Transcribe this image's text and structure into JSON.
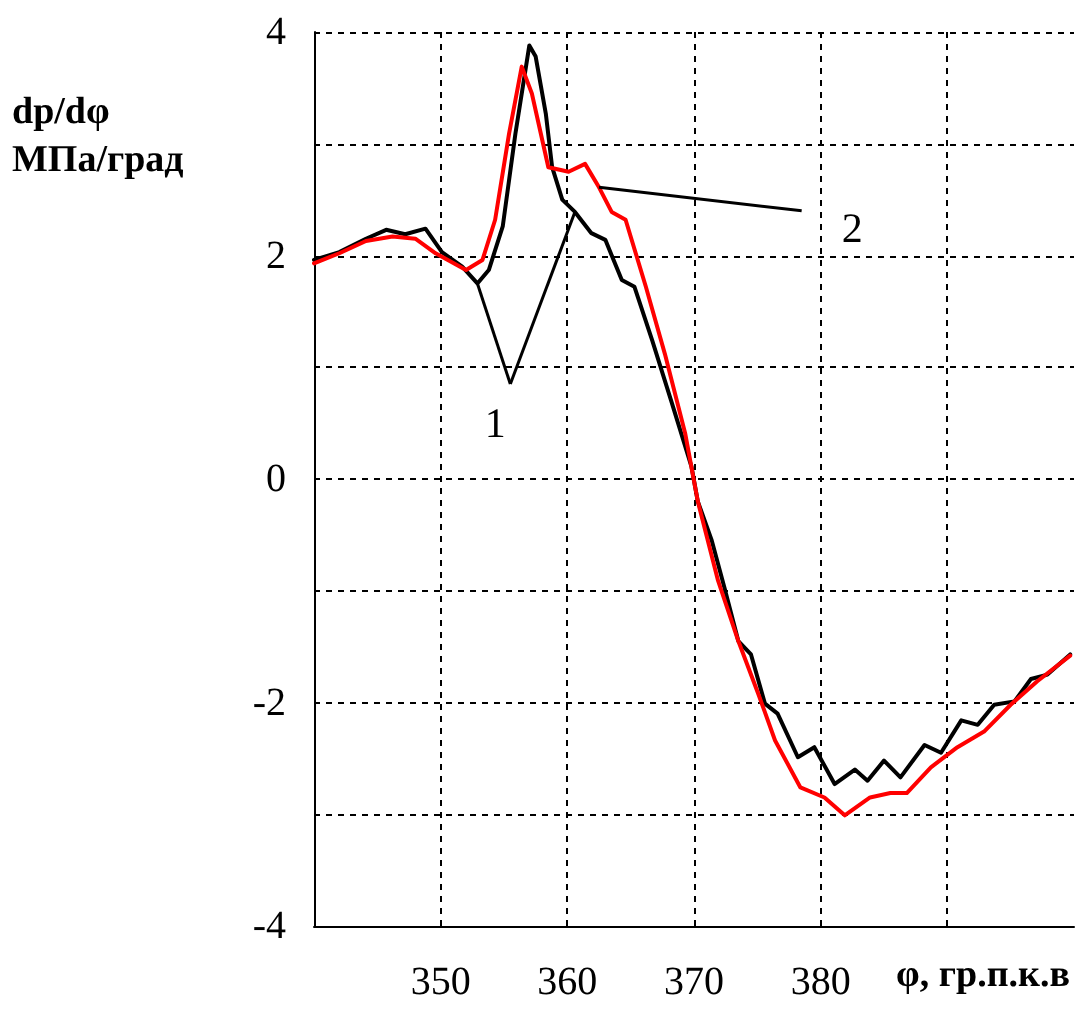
{
  "chart_data": {
    "type": "line",
    "ylabel": "dp/dφ МПа/град",
    "xlabel": "φ, гр.п.к.в",
    "xlim": [
      340,
      400
    ],
    "xticks": [
      350,
      360,
      370,
      380,
      {
        "value": 390,
        "label": null
      }
    ],
    "ylim": [
      -4,
      4
    ],
    "yticks": [
      -4,
      {
        "value": -3,
        "label": null
      },
      -2,
      {
        "value": -1,
        "label": null
      },
      0,
      {
        "value": 1,
        "label": null
      },
      2,
      {
        "value": 3,
        "label": null
      },
      4
    ],
    "annotations": [
      {
        "text": "1",
        "x": 352.9,
        "y": 1.75
      },
      {
        "text": "2",
        "x": 362.5,
        "y": 2.61
      }
    ],
    "grid": true,
    "marker": "none",
    "line_style": "solid",
    "series": [
      {
        "color": "#000000",
        "x": [
          340,
          342,
          344.1,
          345.7,
          347.2,
          348.8,
          350.1,
          351.7,
          352.9,
          353.8,
          354.9,
          355.9,
          357.0,
          357.5,
          358.3,
          358.8,
          359.6,
          360.6,
          361.9,
          363.0,
          364.3,
          365.3,
          366.7,
          368.2,
          369.8,
          370.3,
          371.4,
          372.4,
          373.5,
          374.5,
          375.6,
          376.6,
          378.2,
          379.5,
          381.1,
          382.7,
          383.7,
          385.0,
          386.3,
          388.2,
          389.5,
          391.1,
          392.4,
          393.7,
          395.3,
          396.6,
          397.9,
          399.7
        ],
        "values": [
          1.96,
          2.03,
          2.15,
          2.23,
          2.19,
          2.24,
          2.03,
          1.9,
          1.75,
          1.87,
          2.26,
          3.09,
          3.88,
          3.78,
          3.27,
          2.79,
          2.5,
          2.39,
          2.2,
          2.14,
          1.78,
          1.72,
          1.24,
          0.7,
          0.11,
          -0.2,
          -0.55,
          -0.97,
          -1.45,
          -1.57,
          -2.01,
          -2.1,
          -2.49,
          -2.4,
          -2.73,
          -2.6,
          -2.7,
          -2.52,
          -2.67,
          -2.38,
          -2.45,
          -2.16,
          -2.2,
          -2.02,
          -1.99,
          -1.79,
          -1.75,
          -1.57
        ]
      },
      {
        "color": "#ff0000",
        "x": [
          340,
          342,
          344.1,
          346.2,
          348.0,
          349.6,
          352.0,
          353.3,
          354.3,
          355.4,
          356.4,
          357.2,
          358.5,
          360.1,
          361.4,
          362.5,
          363.5,
          364.6,
          366.2,
          367.7,
          369.3,
          370.3,
          371.9,
          373.5,
          375.1,
          376.4,
          378.4,
          380.3,
          381.9,
          383.9,
          385.5,
          386.8,
          388.7,
          390.8,
          392.9,
          395.0,
          397.1,
          399.7
        ],
        "values": [
          1.93,
          2.02,
          2.13,
          2.17,
          2.15,
          2.02,
          1.87,
          1.96,
          2.32,
          3.09,
          3.69,
          3.45,
          2.79,
          2.75,
          2.82,
          2.61,
          2.39,
          2.32,
          1.72,
          1.12,
          0.41,
          -0.2,
          -0.91,
          -1.45,
          -1.93,
          -2.34,
          -2.76,
          -2.85,
          -3.01,
          -2.85,
          -2.81,
          -2.81,
          -2.58,
          -2.4,
          -2.26,
          -2.02,
          -1.81,
          -1.58
        ]
      }
    ]
  }
}
